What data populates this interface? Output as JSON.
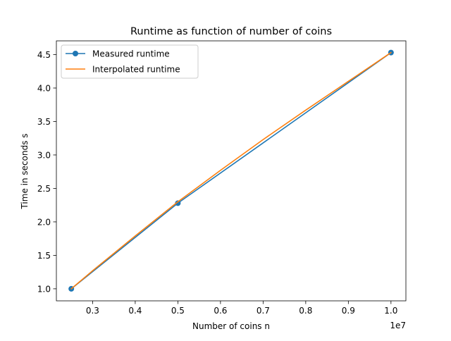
{
  "chart_data": {
    "type": "line",
    "title": "Runtime as function of number of coins",
    "xlabel": "Number of coins n",
    "ylabel": "Time in seconds s",
    "x_offset_label": "1e7",
    "xlim": [
      2150000,
      10350000
    ],
    "ylim": [
      0.82,
      4.705
    ],
    "x_ticks": [
      {
        "value": 3000000,
        "label": "0.3"
      },
      {
        "value": 4000000,
        "label": "0.4"
      },
      {
        "value": 5000000,
        "label": "0.5"
      },
      {
        "value": 6000000,
        "label": "0.6"
      },
      {
        "value": 7000000,
        "label": "0.7"
      },
      {
        "value": 8000000,
        "label": "0.8"
      },
      {
        "value": 9000000,
        "label": "0.9"
      },
      {
        "value": 10000000,
        "label": "1.0"
      }
    ],
    "y_ticks": [
      {
        "value": 1.0,
        "label": "1.0"
      },
      {
        "value": 1.5,
        "label": "1.5"
      },
      {
        "value": 2.0,
        "label": "2.0"
      },
      {
        "value": 2.5,
        "label": "2.5"
      },
      {
        "value": 3.0,
        "label": "3.0"
      },
      {
        "value": 3.5,
        "label": "3.5"
      },
      {
        "value": 4.0,
        "label": "4.0"
      },
      {
        "value": 4.5,
        "label": "4.5"
      }
    ],
    "grid": false,
    "legend_position": "top-left",
    "series": [
      {
        "name": "Measured runtime",
        "color": "#1f77b4",
        "marker": "circle",
        "points": [
          {
            "x": 2500000,
            "y": 1.0
          },
          {
            "x": 5000000,
            "y": 2.28
          },
          {
            "x": 10000000,
            "y": 4.53
          }
        ]
      },
      {
        "name": "Interpolated runtime",
        "color": "#ff7f0e",
        "marker": "none",
        "points": [
          {
            "x": 2500000,
            "y": 1.0
          },
          {
            "x": 3000000,
            "y": 1.27
          },
          {
            "x": 4000000,
            "y": 1.79
          },
          {
            "x": 5000000,
            "y": 2.3
          },
          {
            "x": 6000000,
            "y": 2.77
          },
          {
            "x": 7000000,
            "y": 3.23
          },
          {
            "x": 8000000,
            "y": 3.67
          },
          {
            "x": 9000000,
            "y": 4.1
          },
          {
            "x": 10000000,
            "y": 4.53
          }
        ]
      }
    ]
  }
}
